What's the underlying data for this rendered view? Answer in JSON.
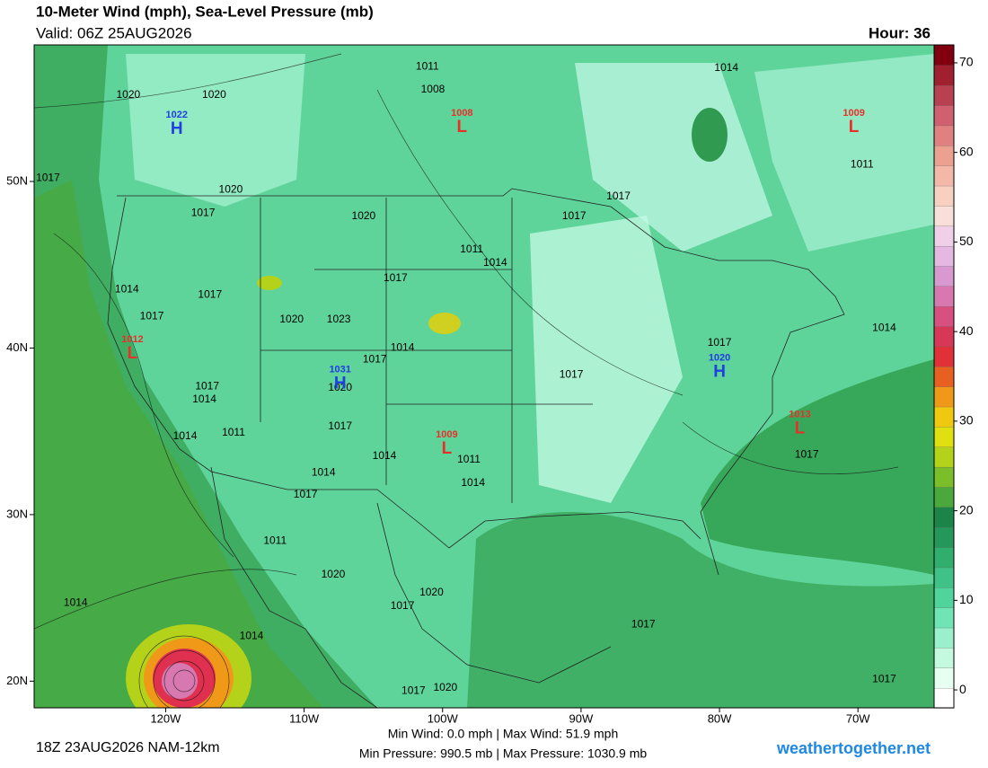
{
  "header": {
    "title": "10-Meter Wind (mph), Sea-Level Pressure (mb)",
    "valid": "Valid: 06Z 25AUG2026",
    "hour": "Hour: 36"
  },
  "map": {
    "lonlim": [
      -129.5,
      -64.5
    ],
    "latlim": [
      58.2,
      18.4
    ],
    "lat_ticks": [
      {
        "value": 50,
        "label": "50N"
      },
      {
        "value": 40,
        "label": "40N"
      },
      {
        "value": 30,
        "label": "30N"
      },
      {
        "value": 20,
        "label": "20N"
      }
    ],
    "lon_ticks": [
      {
        "value": -120,
        "label": "120W"
      },
      {
        "value": -110,
        "label": "110W"
      },
      {
        "value": -100,
        "label": "100W"
      },
      {
        "value": -90,
        "label": "90W"
      },
      {
        "value": -80,
        "label": "80W"
      },
      {
        "value": -70,
        "label": "70W"
      }
    ],
    "centers": [
      {
        "kind": "H",
        "value": 1022,
        "lon": -119.2,
        "lat": 53.3
      },
      {
        "kind": "L",
        "value": 1008,
        "lon": -98.6,
        "lat": 53.4
      },
      {
        "kind": "L",
        "value": 1009,
        "lon": -70.3,
        "lat": 53.4
      },
      {
        "kind": "L",
        "value": 1012,
        "lon": -122.4,
        "lat": 39.8
      },
      {
        "kind": "H",
        "value": 1031,
        "lon": -107.4,
        "lat": 38.0
      },
      {
        "kind": "H",
        "value": 1020,
        "lon": -80.0,
        "lat": 38.7
      },
      {
        "kind": "L",
        "value": 1009,
        "lon": -99.7,
        "lat": 34.1
      },
      {
        "kind": "L",
        "value": 1013,
        "lon": -74.2,
        "lat": 35.3
      }
    ],
    "isobar_labels": [
      {
        "value": 1020,
        "lon": -122.7,
        "lat": 55.2
      },
      {
        "value": 1020,
        "lon": -116.5,
        "lat": 55.2
      },
      {
        "value": 1020,
        "lon": -115.3,
        "lat": 49.5
      },
      {
        "value": 1017,
        "lon": -117.3,
        "lat": 48.1
      },
      {
        "value": 1020,
        "lon": -105.7,
        "lat": 47.9
      },
      {
        "value": 1011,
        "lon": -101.1,
        "lat": 56.9
      },
      {
        "value": 1008,
        "lon": -100.7,
        "lat": 55.5
      },
      {
        "value": 1017,
        "lon": -90.5,
        "lat": 47.9
      },
      {
        "value": 1011,
        "lon": -97.9,
        "lat": 45.9
      },
      {
        "value": 1014,
        "lon": -96.2,
        "lat": 45.1
      },
      {
        "value": 1017,
        "lon": -103.4,
        "lat": 44.2
      },
      {
        "value": 1014,
        "lon": -122.8,
        "lat": 43.5
      },
      {
        "value": 1017,
        "lon": -116.8,
        "lat": 43.2
      },
      {
        "value": 1017,
        "lon": -121.0,
        "lat": 41.9
      },
      {
        "value": 1020,
        "lon": -110.9,
        "lat": 41.7
      },
      {
        "value": 1023,
        "lon": -107.5,
        "lat": 41.7
      },
      {
        "value": 1014,
        "lon": -102.9,
        "lat": 40.0
      },
      {
        "value": 1017,
        "lon": -104.9,
        "lat": 39.3
      },
      {
        "value": 1017,
        "lon": -90.7,
        "lat": 38.4
      },
      {
        "value": 1017,
        "lon": -80.0,
        "lat": 40.3
      },
      {
        "value": 1020,
        "lon": -107.4,
        "lat": 37.6
      },
      {
        "value": 1017,
        "lon": -117.0,
        "lat": 37.7
      },
      {
        "value": 1014,
        "lon": -117.2,
        "lat": 36.9
      },
      {
        "value": 1017,
        "lon": -107.4,
        "lat": 35.3
      },
      {
        "value": 1011,
        "lon": -115.1,
        "lat": 34.9
      },
      {
        "value": 1014,
        "lon": -118.6,
        "lat": 34.7
      },
      {
        "value": 1014,
        "lon": -104.2,
        "lat": 33.5
      },
      {
        "value": 1011,
        "lon": -98.1,
        "lat": 33.3
      },
      {
        "value": 1014,
        "lon": -108.6,
        "lat": 32.5
      },
      {
        "value": 1014,
        "lon": -97.8,
        "lat": 31.9
      },
      {
        "value": 1017,
        "lon": -109.9,
        "lat": 31.2
      },
      {
        "value": 1011,
        "lon": -112.1,
        "lat": 28.4
      },
      {
        "value": 1020,
        "lon": -107.9,
        "lat": 26.4
      },
      {
        "value": 1020,
        "lon": -100.8,
        "lat": 25.3
      },
      {
        "value": 1017,
        "lon": -102.9,
        "lat": 24.5
      },
      {
        "value": 1014,
        "lon": -126.5,
        "lat": 24.7
      },
      {
        "value": 1014,
        "lon": -113.8,
        "lat": 22.7
      },
      {
        "value": 1017,
        "lon": -85.5,
        "lat": 23.4
      },
      {
        "value": 1017,
        "lon": -102.1,
        "lat": 19.4
      },
      {
        "value": 1020,
        "lon": -99.8,
        "lat": 19.6
      },
      {
        "value": 1017,
        "lon": -73.7,
        "lat": 33.6
      },
      {
        "value": 1017,
        "lon": -68.1,
        "lat": 20.1
      },
      {
        "value": 1014,
        "lon": -68.1,
        "lat": 41.2
      },
      {
        "value": 1011,
        "lon": -69.7,
        "lat": 51.0
      },
      {
        "value": 1017,
        "lon": -87.3,
        "lat": 49.1
      },
      {
        "value": 1014,
        "lon": -79.5,
        "lat": 56.8
      },
      {
        "value": 1017,
        "lon": -128.5,
        "lat": 50.2
      }
    ]
  },
  "colorbar": {
    "lim": [
      -2,
      72
    ],
    "ticks": [
      0,
      10,
      20,
      30,
      40,
      50,
      60,
      70
    ],
    "colors": [
      "#ffffff",
      "#e6fff2",
      "#c4f9e0",
      "#9af0cc",
      "#6fe4b4",
      "#4fd49c",
      "#3ec285",
      "#2fae6e",
      "#24985a",
      "#1c8448",
      "#4aa83c",
      "#7cbe2a",
      "#b4d21a",
      "#e0e010",
      "#f0c810",
      "#f09818",
      "#e86020",
      "#e03038",
      "#d83858",
      "#d85080",
      "#d878b0",
      "#d898d0",
      "#e4b8e0",
      "#f0d0e8",
      "#f8e0d8",
      "#f8d0c0",
      "#f4b8a8",
      "#eca090",
      "#e08080",
      "#d06070",
      "#b84050",
      "#a02030",
      "#800010"
    ]
  },
  "footer": {
    "run": "18Z 23AUG2026 NAM-12km",
    "wind": "Min Wind:  0.0 mph | Max Wind: 51.9 mph",
    "pressure": "Min Pressure: 990.5 mb | Max Pressure: 1030.9 mb",
    "site": "weathertogether.net"
  }
}
